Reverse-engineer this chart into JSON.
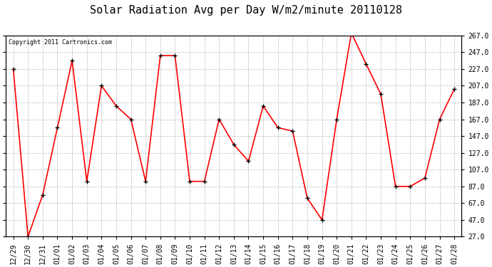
{
  "title": "Solar Radiation Avg per Day W/m2/minute 20110128",
  "copyright": "Copyright 2011 Cartronics.com",
  "labels": [
    "12/29",
    "12/30",
    "12/31",
    "01/01",
    "01/02",
    "01/03",
    "01/04",
    "01/05",
    "01/06",
    "01/07",
    "01/08",
    "01/09",
    "01/10",
    "01/11",
    "01/12",
    "01/13",
    "01/14",
    "01/15",
    "01/16",
    "01/17",
    "01/18",
    "01/19",
    "01/20",
    "01/21",
    "01/22",
    "01/23",
    "01/24",
    "01/25",
    "01/26",
    "01/27",
    "01/28"
  ],
  "values": [
    227,
    27,
    77,
    157,
    237,
    93,
    207,
    183,
    167,
    93,
    243,
    243,
    93,
    93,
    167,
    137,
    117,
    183,
    157,
    153,
    73,
    47,
    167,
    270,
    233,
    197,
    87,
    87,
    97,
    167,
    203
  ],
  "line_color": "#ff0000",
  "marker_color": "#000000",
  "bg_color": "#ffffff",
  "plot_bg_color": "#ffffff",
  "grid_color": "#999999",
  "ylim_min": 27,
  "ylim_max": 267,
  "yticks": [
    27,
    47,
    67,
    87,
    107,
    127,
    147,
    167,
    187,
    207,
    227,
    247,
    267
  ],
  "title_fontsize": 11,
  "copyright_fontsize": 6,
  "tick_fontsize": 7,
  "figwidth": 6.9,
  "figheight": 3.75,
  "dpi": 100
}
